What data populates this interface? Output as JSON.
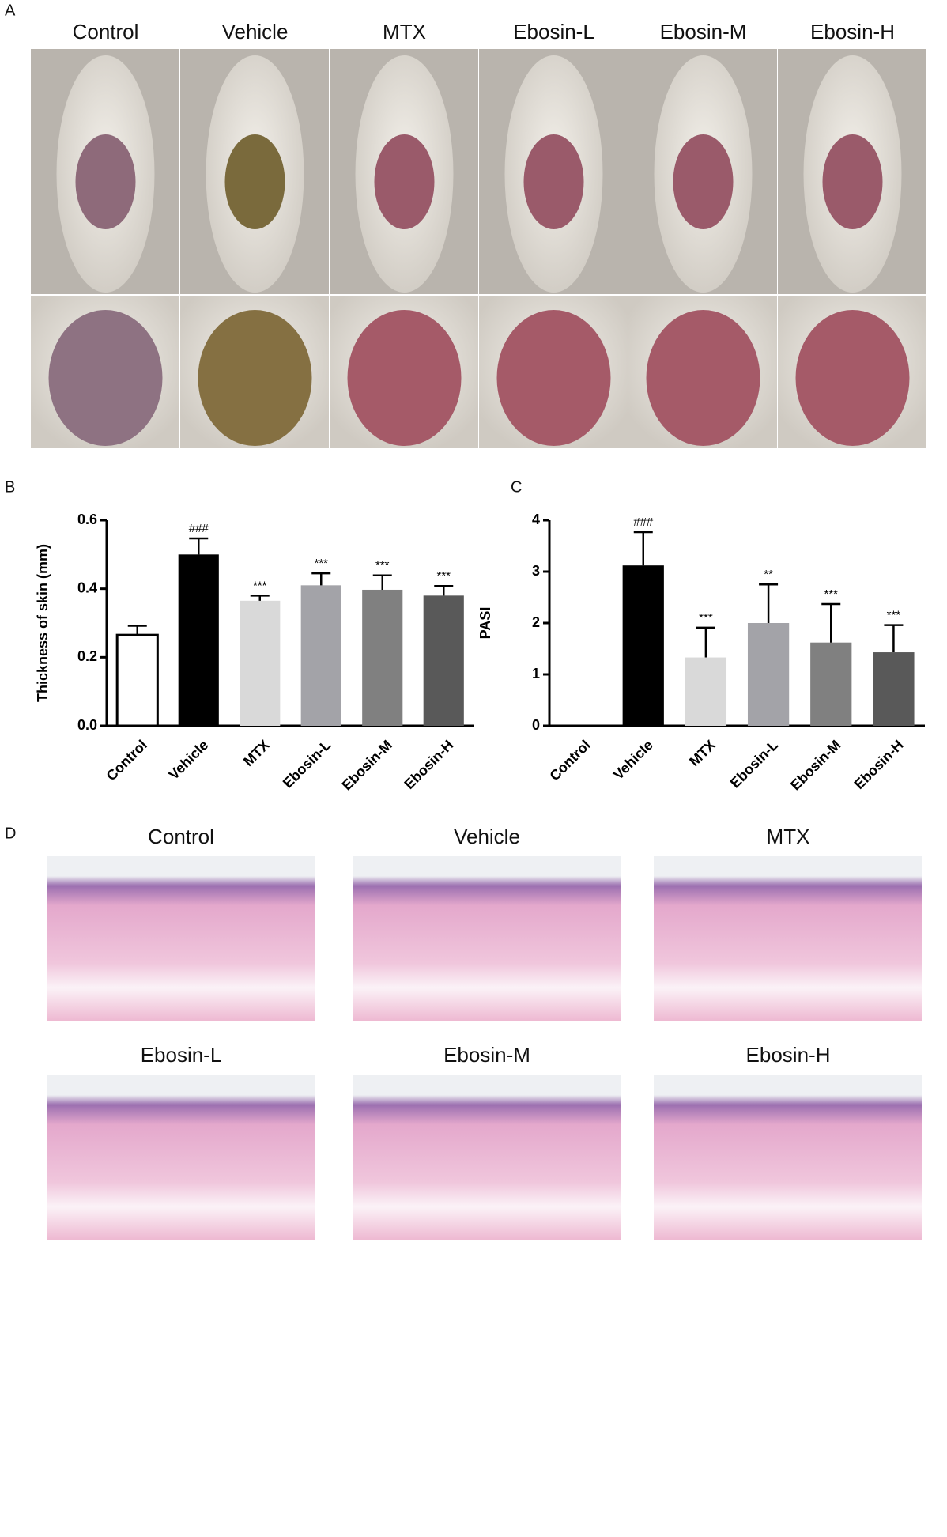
{
  "panel_labels": [
    "A",
    "B",
    "C",
    "D"
  ],
  "photo_labels": [
    "Control",
    "Vehicle",
    "MTX",
    "Ebosin-L",
    "Ebosin-M",
    "Ebosin-H"
  ],
  "histology_labels": [
    "Control",
    "Vehicle",
    "MTX",
    "Ebosin-L",
    "Ebosin-M",
    "Ebosin-H"
  ],
  "chart_data": [
    {
      "type": "bar",
      "y_label": "Thickness of skin (mm)",
      "categories": [
        "Control",
        "Vehicle",
        "MTX",
        "Ebosin-L",
        "Ebosin-M",
        "Ebosin-H"
      ],
      "values": [
        0.265,
        0.5,
        0.365,
        0.41,
        0.397,
        0.38
      ],
      "errors": [
        0.027,
        0.047,
        0.015,
        0.035,
        0.042,
        0.028
      ],
      "annotations": [
        null,
        "###",
        "***",
        "***",
        "***",
        "***"
      ],
      "colors": [
        "#ffffff",
        "#000000",
        "#d9d9d9",
        "#a3a3a8",
        "#808080",
        "#595959"
      ],
      "ylim": [
        0,
        0.6
      ],
      "yticks": [
        {
          "value": 0,
          "label": "0.0"
        },
        0.2,
        0.4,
        0.6
      ]
    },
    {
      "type": "bar",
      "y_label": "PASI",
      "categories": [
        "Control",
        "Vehicle",
        "MTX",
        "Ebosin-L",
        "Ebosin-M",
        "Ebosin-H"
      ],
      "values": [
        0,
        3.12,
        1.33,
        2.0,
        1.62,
        1.43
      ],
      "errors": [
        0,
        0.65,
        0.58,
        0.75,
        0.75,
        0.53
      ],
      "annotations": [
        null,
        "###",
        "***",
        "**",
        "***",
        "***"
      ],
      "colors": [
        "#ffffff",
        "#000000",
        "#d9d9d9",
        "#a3a3a8",
        "#808080",
        "#595959"
      ],
      "ylim": [
        0,
        4
      ],
      "yticks": [
        0,
        1,
        2,
        3,
        4
      ]
    }
  ]
}
